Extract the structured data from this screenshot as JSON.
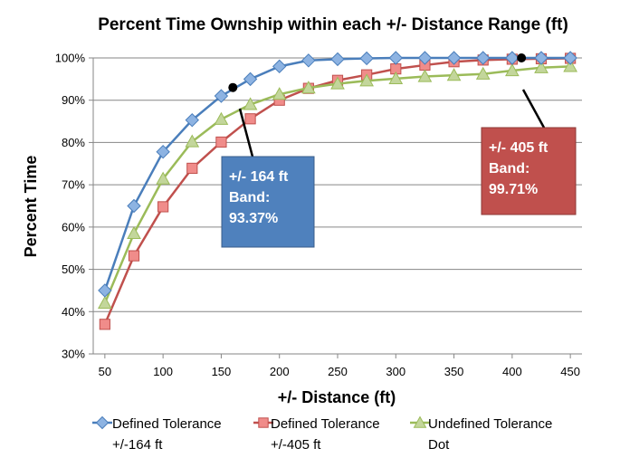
{
  "chart_data": {
    "type": "line",
    "title": "Percent Time Ownship within each +/- Distance Range (ft)",
    "xlabel": "+/- Distance (ft)",
    "ylabel": "Percent Time",
    "x": [
      50,
      75,
      100,
      125,
      150,
      175,
      200,
      225,
      250,
      275,
      300,
      325,
      350,
      375,
      400,
      425,
      450
    ],
    "xticks": [
      50,
      100,
      150,
      200,
      250,
      300,
      350,
      400,
      450
    ],
    "xtick_labels": [
      "50",
      "100",
      "150",
      "200",
      "250",
      "300",
      "350",
      "400",
      "450"
    ],
    "xlim": [
      40,
      460
    ],
    "ylim": [
      30,
      100
    ],
    "yticks": [
      30,
      40,
      50,
      60,
      70,
      80,
      90,
      100
    ],
    "ytick_labels": [
      "30%",
      "40%",
      "50%",
      "60%",
      "70%",
      "80%",
      "90%",
      "100%"
    ],
    "grid": "horizontal",
    "legend_position": "bottom",
    "series": [
      {
        "name": "Defined Tolerance +/-164 ft",
        "legend_lines": [
          "Defined Tolerance",
          "+/-164 ft"
        ],
        "marker": "diamond",
        "color": "#4a7ebb",
        "fill": "#8db3e2",
        "values": [
          45,
          65,
          77.8,
          85.3,
          91,
          95,
          98,
          99.4,
          99.7,
          99.9,
          100,
          100,
          100,
          100,
          100,
          100,
          100
        ]
      },
      {
        "name": "Defined Tolerance +/-405 ft",
        "legend_lines": [
          "Defined Tolerance",
          "+/-405 ft"
        ],
        "marker": "square",
        "color": "#c0504d",
        "fill": "#f08c8a",
        "values": [
          37,
          53.2,
          64.8,
          73.9,
          80.1,
          85.6,
          90,
          92.8,
          94.7,
          96,
          97.4,
          98.3,
          99.1,
          99.5,
          99.7,
          99.8,
          99.9
        ]
      },
      {
        "name": "Undefined Tolerance Dot",
        "legend_lines": [
          "Undefined Tolerance",
          "Dot"
        ],
        "marker": "triangle",
        "color": "#9bbb59",
        "fill": "#c3d69b",
        "values": [
          42,
          58.5,
          71.4,
          80.2,
          85.5,
          89,
          91.4,
          92.9,
          93.9,
          94.6,
          95.1,
          95.6,
          95.9,
          96.2,
          97,
          97.7,
          98
        ]
      }
    ],
    "annotations": [
      {
        "lines": [
          "+/- 164 ft",
          "Band:",
          "93.37%"
        ],
        "box_color": "#4f81bd",
        "border_color": "#385d8a",
        "point": [
          160,
          93
        ]
      },
      {
        "lines": [
          "+/- 405 ft",
          "Band:",
          "99.71%"
        ],
        "box_color": "#c0504d",
        "border_color": "#8c3836",
        "point": [
          408,
          100
        ]
      }
    ]
  }
}
